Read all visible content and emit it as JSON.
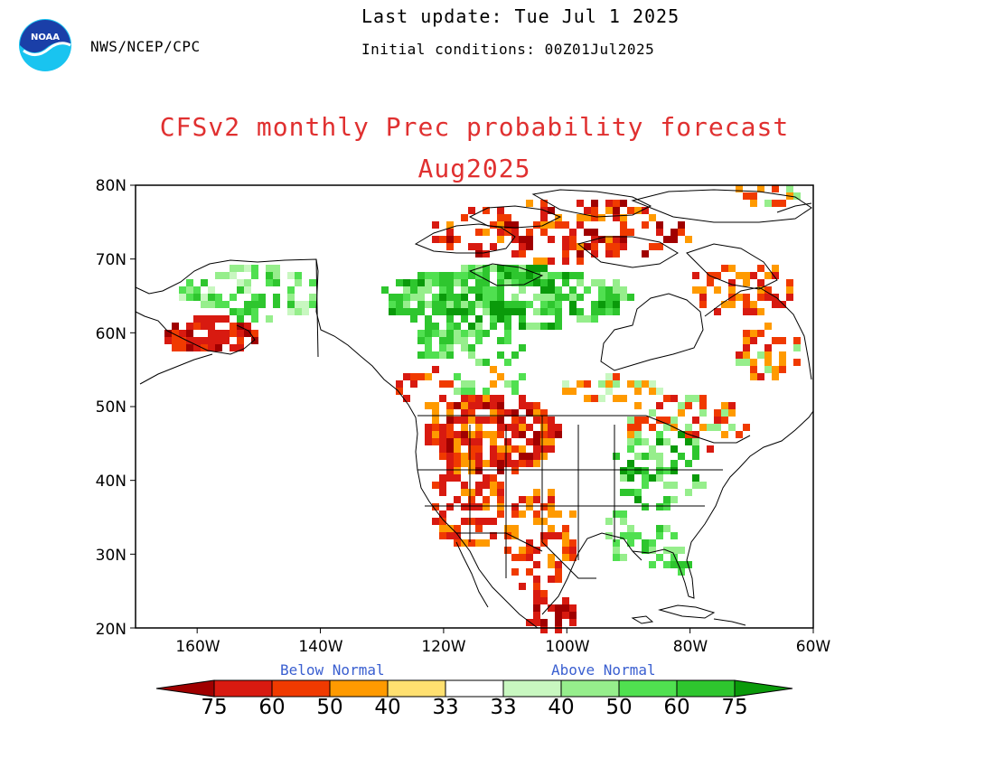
{
  "header": {
    "agency": "NWS/NCEP/CPC",
    "last_update": "Last update: Tue Jul 1 2025",
    "initial_conditions": "Initial conditions: 00Z01Jul2025",
    "title_line1": "CFSv2 monthly Prec probability forecast",
    "title_line2": "Aug2025",
    "logo_text": "NOAA"
  },
  "map": {
    "lat_labels": [
      "80N",
      "70N",
      "60N",
      "50N",
      "40N",
      "30N",
      "20N"
    ],
    "lon_labels": [
      "160W",
      "140W",
      "120W",
      "100W",
      "80W",
      "60W"
    ],
    "lat_range": [
      20,
      80
    ],
    "lon_range": [
      -170,
      -60
    ],
    "categories": {
      "B75": "#a00000",
      "B60": "#d81a10",
      "B50": "#f03a00",
      "B40": "#ff9a00",
      "B33": "#ffe070",
      "A33": "#c8f7c0",
      "A40": "#96ee8c",
      "A50": "#50e050",
      "A60": "#2ec62e",
      "A75": "#0a9a0a"
    }
  },
  "colorbar": {
    "below_label": "Below Normal",
    "above_label": "Above Normal",
    "tick_labels": [
      "75",
      "60",
      "50",
      "40",
      "33",
      "33",
      "40",
      "50",
      "60",
      "75"
    ],
    "colors": [
      "#a00000",
      "#d81a10",
      "#f03a00",
      "#ff9a00",
      "#ffe070",
      "#ffffff",
      "#c8f7c0",
      "#96ee8c",
      "#50e050",
      "#2ec62e",
      "#0a9a0a"
    ]
  }
}
